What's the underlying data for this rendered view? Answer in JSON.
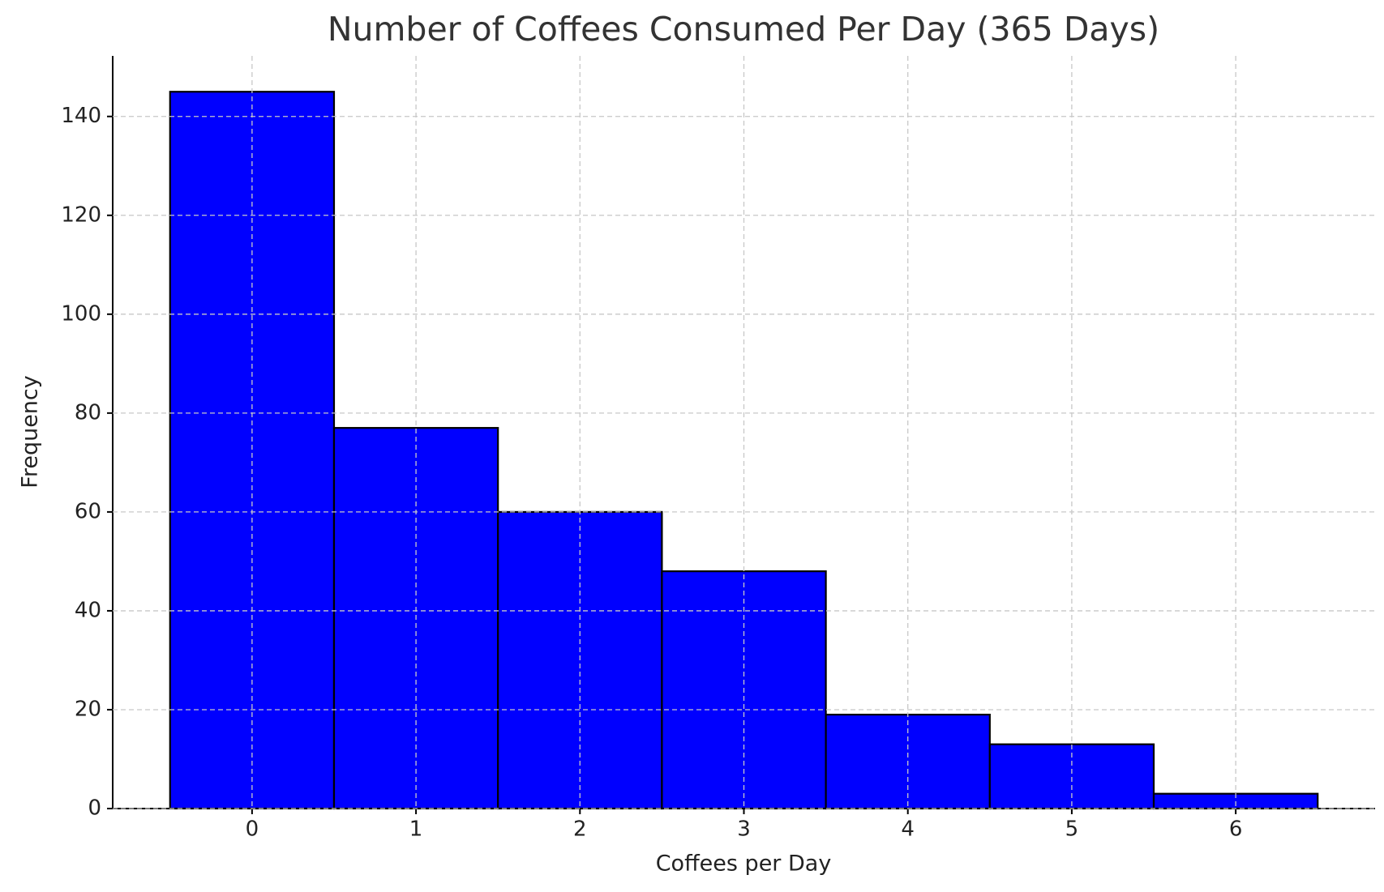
{
  "chart_data": {
    "type": "histogram",
    "title": "Number of Coffees Consumed Per Day (365 Days)",
    "x_label": "Coffees per Day",
    "y_label": "Frequency",
    "bins": [
      -0.5,
      0.5,
      1.5,
      2.5,
      3.5,
      4.5,
      5.5,
      6.5
    ],
    "values": [
      145,
      77,
      60,
      48,
      19,
      13,
      3
    ],
    "color": "#0000ff",
    "edge_color": "#000000",
    "xlim": [
      -0.85,
      6.85
    ],
    "xticks": [
      0,
      1,
      2,
      3,
      4,
      5,
      6
    ],
    "ylim": [
      0,
      152.25
    ],
    "yticks": [
      0,
      20,
      40,
      60,
      80,
      100,
      120,
      140
    ],
    "grid": true
  }
}
